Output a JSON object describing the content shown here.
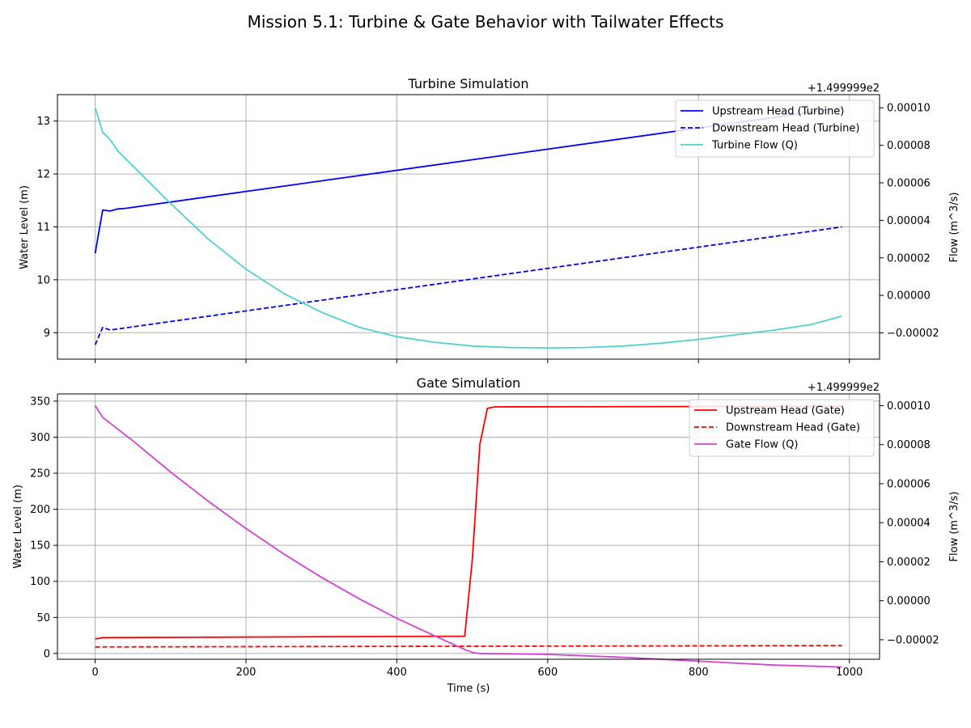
{
  "suptitle": "Mission 5.1: Turbine & Gate Behavior with Tailwater Effects",
  "chart_data": [
    {
      "type": "line",
      "title": "Turbine Simulation",
      "xlabel": "",
      "ylabel": "Water Level (m)",
      "ylabel_right": "Flow (m^3/s)",
      "right_offset_label": "+1.499999e2",
      "xlim": [
        -50,
        1040
      ],
      "ylim": [
        8.5,
        13.5
      ],
      "ylim_right": [
        -3.4e-05,
        0.000107
      ],
      "x_ticks": [
        0,
        200,
        400,
        600,
        800,
        1000
      ],
      "x_tick_labels": [
        "",
        "",
        "",
        "",
        "",
        ""
      ],
      "y_ticks": [
        9,
        10,
        11,
        12,
        13
      ],
      "y_tick_labels": [
        "9",
        "10",
        "11",
        "12",
        "13"
      ],
      "y_right_ticks": [
        -2e-05,
        0.0,
        2e-05,
        4e-05,
        6e-05,
        8e-05,
        0.0001
      ],
      "y_right_tick_labels": [
        "−0.00002",
        "0.00000",
        "0.00002",
        "0.00004",
        "0.00006",
        "0.00008",
        "0.00010"
      ],
      "grid": true,
      "legend_position": "upper right",
      "series": [
        {
          "name": "Upstream Head (Turbine)",
          "axis": "left",
          "color": "#0000ff",
          "dash": false,
          "x": [
            0,
            10,
            20,
            30,
            40,
            990
          ],
          "y": [
            10.5,
            11.32,
            11.3,
            11.34,
            11.35,
            13.25
          ]
        },
        {
          "name": "Downstream Head (Turbine)",
          "axis": "left",
          "color": "#0000ff",
          "dash": true,
          "x": [
            0,
            10,
            20,
            990
          ],
          "y": [
            8.77,
            9.1,
            9.05,
            11.0
          ]
        },
        {
          "name": "Turbine Flow (Q)",
          "axis": "right",
          "color": "#4fd1d1",
          "dash": false,
          "x": [
            0,
            10,
            20,
            30,
            50,
            100,
            150,
            200,
            250,
            300,
            350,
            400,
            450,
            500,
            550,
            600,
            650,
            700,
            750,
            800,
            850,
            900,
            950,
            990
          ],
          "y": [
            0.0001,
            8.7e-05,
            8.3e-05,
            7.7e-05,
            6.9e-05,
            4.9e-05,
            3e-05,
            1.4e-05,
            1e-06,
            -9e-06,
            -1.7e-05,
            -2.2e-05,
            -2.5e-05,
            -2.7e-05,
            -2.78e-05,
            -2.8e-05,
            -2.78e-05,
            -2.7e-05,
            -2.55e-05,
            -2.35e-05,
            -2.1e-05,
            -1.85e-05,
            -1.55e-05,
            -1.1e-05
          ]
        }
      ]
    },
    {
      "type": "line",
      "title": "Gate Simulation",
      "xlabel": "Time (s)",
      "ylabel": "Water Level (m)",
      "ylabel_right": "Flow (m^3/s)",
      "right_offset_label": "+1.499999e2",
      "xlim": [
        -50,
        1040
      ],
      "ylim": [
        -8,
        360
      ],
      "ylim_right": [
        -3e-05,
        0.000106
      ],
      "x_ticks": [
        0,
        200,
        400,
        600,
        800,
        1000
      ],
      "x_tick_labels": [
        "0",
        "200",
        "400",
        "600",
        "800",
        "1000"
      ],
      "y_ticks": [
        0,
        50,
        100,
        150,
        200,
        250,
        300,
        350
      ],
      "y_tick_labels": [
        "0",
        "50",
        "100",
        "150",
        "200",
        "250",
        "300",
        "350"
      ],
      "y_right_ticks": [
        -2e-05,
        0.0,
        2e-05,
        4e-05,
        6e-05,
        8e-05,
        0.0001
      ],
      "y_right_tick_labels": [
        "−0.00002",
        "0.00000",
        "0.00002",
        "0.00004",
        "0.00006",
        "0.00008",
        "0.00010"
      ],
      "grid": true,
      "legend_position": "upper right",
      "series": [
        {
          "name": "Upstream Head (Gate)",
          "axis": "left",
          "color": "#ff0000",
          "dash": false,
          "x": [
            0,
            10,
            490,
            500,
            510,
            520,
            530,
            990
          ],
          "y": [
            20,
            22,
            24,
            130,
            290,
            340,
            342,
            343
          ]
        },
        {
          "name": "Downstream Head (Gate)",
          "axis": "left",
          "color": "#ff0000",
          "dash": true,
          "x": [
            0,
            990
          ],
          "y": [
            9,
            11
          ]
        },
        {
          "name": "Gate Flow (Q)",
          "axis": "right",
          "color": "#d442d4",
          "dash": false,
          "x": [
            0,
            10,
            20,
            50,
            100,
            150,
            200,
            250,
            300,
            350,
            400,
            450,
            490,
            500,
            510,
            600,
            700,
            800,
            900,
            990
          ],
          "y": [
            0.0001,
            9.4e-05,
            9.1e-05,
            8.2e-05,
            6.6e-05,
            5.1e-05,
            3.7e-05,
            2.4e-05,
            1.2e-05,
            1e-06,
            -9e-06,
            -1.8e-05,
            -2.5e-05,
            -2.65e-05,
            -2.7e-05,
            -2.75e-05,
            -2.9e-05,
            -3.1e-05,
            -3.3e-05,
            -3.4e-05
          ]
        }
      ]
    }
  ]
}
